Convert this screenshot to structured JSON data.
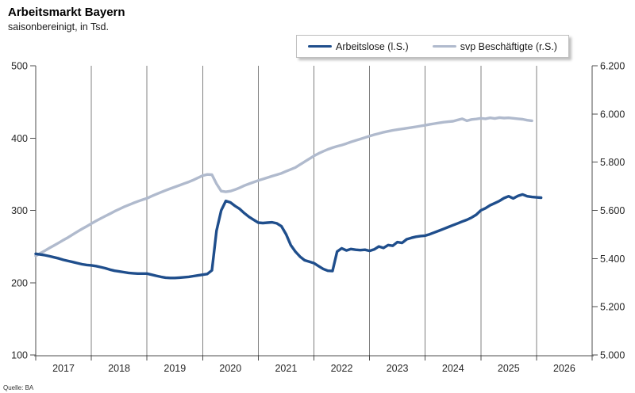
{
  "header": {
    "title": "Arbeitsmarkt Bayern",
    "subtitle": "saisonbereinigt, in Tsd."
  },
  "source": "Quelle: BA",
  "legend": {
    "items": [
      {
        "label": "Arbeitslose (l.S.)",
        "color": "#1f4e8c"
      },
      {
        "label": "svp Beschäftigte (r.S.)",
        "color": "#b0bacd"
      }
    ]
  },
  "chart_data": {
    "type": "line",
    "title": "Arbeitsmarkt Bayern",
    "subtitle": "saisonbereinigt, in Tsd.",
    "x_unit": "month",
    "x_tick_labels": [
      "2017",
      "2018",
      "2019",
      "2020",
      "2021",
      "2022",
      "2023",
      "2024",
      "2025",
      "2026"
    ],
    "grid": "vertical-yearly",
    "legend_position": "top-center",
    "colors": {
      "gridline": "#808080",
      "axis": "#4d4d4d",
      "baseline": "#a6a6a6",
      "text": "#262626"
    },
    "left_axis": {
      "min": 100,
      "max": 500,
      "ticks": [
        100,
        200,
        300,
        400,
        500
      ]
    },
    "right_axis": {
      "min": 5000,
      "max": 6200,
      "ticks": [
        5000,
        5200,
        5400,
        5600,
        5800,
        6000,
        6200
      ],
      "tick_labels": [
        "5.000",
        "5.200",
        "5.400",
        "5.600",
        "5.800",
        "6.000",
        "6.200"
      ]
    },
    "series": [
      {
        "name": "Arbeitslose (l.S.)",
        "axis": "left",
        "color": "#1f4e8c",
        "stroke_width": 3.4,
        "monthly_values": [
          240,
          239,
          238,
          236.5,
          235,
          233.5,
          231.5,
          230,
          228.5,
          227,
          225.5,
          224.5,
          224,
          223,
          221.5,
          220,
          218,
          216.5,
          215.5,
          214.5,
          213.5,
          213,
          212.5,
          212.5,
          212.5,
          211,
          209.5,
          208,
          207,
          206.5,
          206.5,
          207,
          207.5,
          208,
          209,
          210,
          211,
          212,
          217,
          272,
          300,
          313,
          311,
          306,
          302,
          296,
          291,
          287,
          283,
          282.5,
          283,
          283.5,
          282,
          278,
          267,
          252,
          243,
          236,
          231,
          229,
          227,
          223,
          219,
          216.5,
          216,
          243,
          247.5,
          244.5,
          246.5,
          245.5,
          245,
          245.5,
          244,
          246,
          250,
          248,
          252,
          251,
          256,
          255,
          260,
          262,
          263.5,
          264.5,
          265,
          267,
          269.5,
          272,
          274.5,
          277,
          279.5,
          282,
          284.5,
          287,
          290,
          294,
          300,
          303,
          307,
          310,
          313,
          317,
          319.5,
          316.5,
          320,
          322,
          319.5,
          318.5,
          318,
          317.5
        ]
      },
      {
        "name": "svp Beschäftigte (r.S.)",
        "axis": "right",
        "color": "#b0bacd",
        "stroke_width": 3.4,
        "monthly_values": [
          5411,
          5422,
          5433,
          5444,
          5455,
          5466,
          5477,
          5488,
          5500,
          5512,
          5523,
          5534,
          5545,
          5556,
          5566,
          5576,
          5586,
          5596,
          5605,
          5614,
          5622,
          5630,
          5637,
          5644,
          5650,
          5659,
          5667,
          5675,
          5683,
          5690,
          5697,
          5704,
          5711,
          5718,
          5726,
          5735,
          5744,
          5749,
          5748,
          5710,
          5680,
          5677,
          5680,
          5686,
          5694,
          5703,
          5710,
          5717,
          5724,
          5730,
          5736,
          5742,
          5748,
          5754,
          5762,
          5770,
          5778,
          5790,
          5802,
          5814,
          5826,
          5836,
          5845,
          5853,
          5860,
          5866,
          5871,
          5877,
          5884,
          5890,
          5896,
          5902,
          5908,
          5914,
          5919,
          5924,
          5928,
          5932,
          5935,
          5938,
          5941,
          5944,
          5947,
          5950,
          5953,
          5957,
          5960,
          5963,
          5966,
          5968,
          5970,
          5975,
          5980,
          5972,
          5977,
          5979,
          5982,
          5980,
          5984,
          5981,
          5985,
          5983,
          5984,
          5982,
          5980,
          5978,
          5974,
          5972
        ]
      }
    ]
  }
}
